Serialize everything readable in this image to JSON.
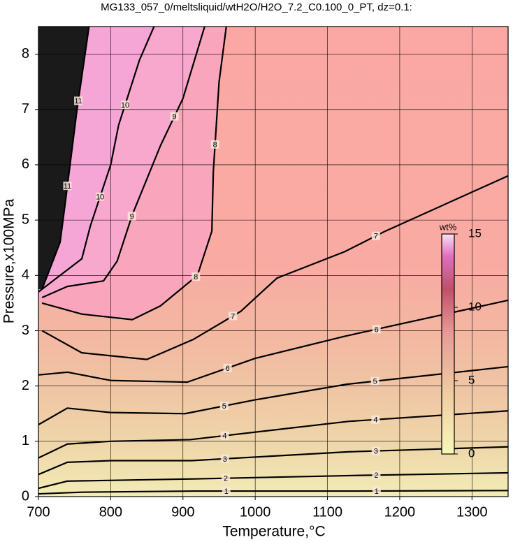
{
  "chart_data": {
    "type": "contour",
    "title": "MG133_057_0/meltsliquid/wtH2O/H2O_7.2_C0.100_0_PT, dz=0.1:",
    "xlabel": "Temperature,°C",
    "ylabel": "Pressure,x100MPa",
    "xlim": [
      700,
      1350
    ],
    "ylim": [
      0,
      8.5
    ],
    "xticks": [
      700,
      800,
      900,
      1000,
      1100,
      1200,
      1300
    ],
    "yticks": [
      0,
      1,
      2,
      3,
      4,
      5,
      6,
      7,
      8
    ],
    "grid": true,
    "contours": [
      {
        "level": 1,
        "x": [
          700,
          760,
          916,
          1132,
          1350
        ],
        "y": [
          0.05,
          0.08,
          0.1,
          0.1,
          0.11
        ]
      },
      {
        "level": 2,
        "x": [
          700,
          740,
          915,
          1131,
          1350
        ],
        "y": [
          0.15,
          0.28,
          0.32,
          0.38,
          0.43
        ]
      },
      {
        "level": 3,
        "x": [
          700,
          740,
          800,
          912,
          1129,
          1350
        ],
        "y": [
          0.4,
          0.62,
          0.65,
          0.65,
          0.81,
          0.9
        ]
      },
      {
        "level": 4,
        "x": [
          700,
          740,
          800,
          910,
          1129,
          1350
        ],
        "y": [
          0.7,
          0.95,
          1.0,
          1.03,
          1.36,
          1.55
        ]
      },
      {
        "level": 5,
        "x": [
          700,
          740,
          800,
          903,
          1000,
          1126,
          1350
        ],
        "y": [
          1.3,
          1.6,
          1.52,
          1.5,
          1.75,
          2.03,
          2.35
        ]
      },
      {
        "level": 6,
        "x": [
          700,
          740,
          800,
          906,
          1000,
          1124,
          1350
        ],
        "y": [
          2.2,
          2.25,
          2.1,
          2.07,
          2.5,
          2.9,
          3.55
        ]
      },
      {
        "level": 7,
        "x": [
          705,
          760,
          850,
          914,
          980,
          1030,
          1124,
          1180,
          1350
        ],
        "y": [
          3.0,
          2.6,
          2.48,
          2.84,
          3.35,
          3.95,
          4.43,
          4.8,
          5.8
        ]
      },
      {
        "level": 8,
        "x": [
          705,
          760,
          830,
          869,
          920,
          940,
          942,
          950,
          960
        ],
        "y": [
          3.5,
          3.3,
          3.2,
          3.45,
          4.0,
          4.8,
          5.87,
          7.5,
          8.5
        ]
      },
      {
        "level": 9,
        "x": [
          705,
          740,
          790,
          809,
          830,
          869,
          900,
          930
        ],
        "y": [
          3.6,
          3.8,
          3.9,
          4.26,
          5.1,
          6.35,
          7.2,
          8.5
        ]
      },
      {
        "level": 10,
        "x": [
          700,
          760,
          772,
          800,
          811,
          840,
          860
        ],
        "y": [
          3.7,
          4.3,
          4.9,
          6.0,
          6.72,
          7.9,
          8.5
        ]
      },
      {
        "level": 11,
        "x": [
          705,
          730,
          737,
          753,
          770
        ],
        "y": [
          3.75,
          4.6,
          5.3,
          6.96,
          8.5
        ]
      }
    ],
    "colorbar": {
      "label": "wt%",
      "lim": [
        0,
        15
      ],
      "ticks": [
        0,
        5,
        10,
        15
      ]
    }
  }
}
